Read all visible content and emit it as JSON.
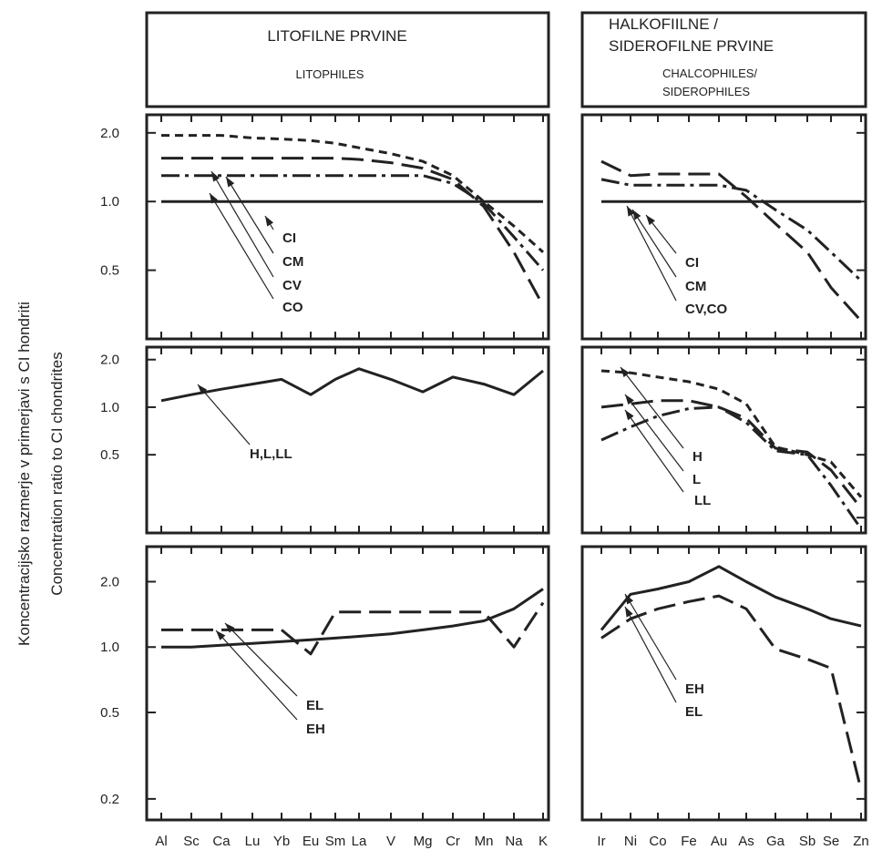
{
  "headers": {
    "left": {
      "title": "LITOFILNE PRVINE",
      "subtitle": "LITOPHILES"
    },
    "right": {
      "title_lines": [
        "HALKOFIILNE /",
        "SIDEROFILNE PRVINE"
      ],
      "subtitle_lines": [
        "CHALCOPHILES/",
        "SIDEROPHILES"
      ]
    }
  },
  "ylabel_lines": [
    "Koncentracijsko razmerje v primerjavi s CI hondriti",
    "Concentration ratio to CI chondrites"
  ],
  "chart_data": [
    {
      "id": "left-top",
      "type": "line",
      "yscale": "log",
      "ylim": [
        0.25,
        2.4
      ],
      "yticks": [
        "2.0",
        "1.0",
        "0.5"
      ],
      "ytick_values": [
        2.0,
        1.0,
        0.5
      ],
      "categories": [
        "Al",
        "Sc",
        "Ca",
        "Lu",
        "Yb",
        "Eu",
        "Sm",
        "La",
        "V",
        "Mg",
        "Cr",
        "Mn",
        "Na",
        "K"
      ],
      "reference_line": 1.0,
      "series": [
        {
          "name": "CI",
          "style": "solid",
          "values": [
            1.0,
            1.0,
            1.0,
            1.0,
            1.0,
            1.0,
            1.0,
            1.0,
            1.0,
            1.0,
            1.0,
            1.0,
            1.0,
            1.0
          ]
        },
        {
          "name": "CM",
          "style": "short-dash",
          "values": [
            1.95,
            1.95,
            1.95,
            1.9,
            1.88,
            1.85,
            1.8,
            1.72,
            1.62,
            1.5,
            1.3,
            1.0,
            0.78,
            0.6
          ]
        },
        {
          "name": "CV",
          "style": "long-dash",
          "values": [
            1.55,
            1.55,
            1.55,
            1.55,
            1.55,
            1.55,
            1.55,
            1.53,
            1.48,
            1.4,
            1.25,
            0.95,
            0.6,
            0.35
          ]
        },
        {
          "name": "CO",
          "style": "dash-dot",
          "values": [
            1.3,
            1.3,
            1.3,
            1.3,
            1.3,
            1.3,
            1.3,
            1.3,
            1.3,
            1.3,
            1.2,
            0.98,
            0.7,
            0.5
          ]
        }
      ],
      "labels": [
        "CI",
        "CM",
        "CV",
        "CO"
      ]
    },
    {
      "id": "right-top",
      "type": "line",
      "yscale": "log",
      "ylim": [
        0.25,
        2.4
      ],
      "categories": [
        "Ir",
        "Ni",
        "Co",
        "Fe",
        "Au",
        "As",
        "Ga",
        "Sb",
        "Se",
        "Zn"
      ],
      "reference_line": 1.0,
      "series": [
        {
          "name": "CI",
          "style": "solid",
          "values": [
            1.0,
            1.0,
            1.0,
            1.0,
            1.0,
            1.0,
            1.0,
            1.0,
            1.0,
            1.0
          ]
        },
        {
          "name": "CM",
          "style": "dash-dot",
          "values": [
            1.25,
            1.18,
            1.18,
            1.18,
            1.18,
            1.12,
            0.92,
            0.75,
            0.6,
            0.45
          ]
        },
        {
          "name": "CV,CO",
          "style": "long-dash",
          "values": [
            1.5,
            1.3,
            1.32,
            1.32,
            1.32,
            1.05,
            0.8,
            0.6,
            0.42,
            0.3
          ]
        }
      ],
      "labels": [
        "CI",
        "CM",
        "CV,CO"
      ]
    },
    {
      "id": "left-middle",
      "type": "line",
      "yscale": "log",
      "ylim": [
        0.16,
        2.4
      ],
      "yticks": [
        "2.0",
        "1.0",
        "0.5"
      ],
      "ytick_values": [
        2.0,
        1.0,
        0.5
      ],
      "categories": [
        "Al",
        "Sc",
        "Ca",
        "Lu",
        "Yb",
        "Eu",
        "Sm",
        "La",
        "V",
        "Mg",
        "Cr",
        "Mn",
        "Na",
        "K"
      ],
      "series": [
        {
          "name": "H,L,LL",
          "style": "solid",
          "values": [
            1.1,
            1.2,
            1.3,
            1.4,
            1.5,
            1.2,
            1.5,
            1.75,
            1.5,
            1.25,
            1.55,
            1.4,
            1.2,
            1.7
          ]
        }
      ],
      "labels": [
        "H,L,LL"
      ]
    },
    {
      "id": "right-middle",
      "type": "line",
      "yscale": "log",
      "ylim": [
        0.16,
        2.4
      ],
      "categories": [
        "Ir",
        "Ni",
        "Co",
        "Fe",
        "Au",
        "As",
        "Ga",
        "Sb",
        "Se",
        "Zn"
      ],
      "series": [
        {
          "name": "H",
          "style": "short-dash",
          "values": [
            1.7,
            1.65,
            1.55,
            1.45,
            1.3,
            1.05,
            0.56,
            0.5,
            0.45,
            0.27
          ]
        },
        {
          "name": "L",
          "style": "long-dash",
          "values": [
            1.0,
            1.05,
            1.1,
            1.1,
            1.0,
            0.85,
            0.55,
            0.52,
            0.4,
            0.23
          ]
        },
        {
          "name": "LL",
          "style": "dash-dot",
          "values": [
            0.62,
            0.75,
            0.88,
            0.98,
            1.0,
            0.8,
            0.53,
            0.5,
            0.32,
            0.17
          ]
        }
      ],
      "labels": [
        "H",
        "L",
        "LL"
      ]
    },
    {
      "id": "left-bottom",
      "type": "line",
      "yscale": "log",
      "ylim": [
        0.16,
        2.9
      ],
      "yticks": [
        "2.0",
        "1.0",
        "0.5",
        "0.2"
      ],
      "ytick_values": [
        2.0,
        1.0,
        0.5,
        0.2
      ],
      "categories": [
        "Al",
        "Sc",
        "Ca",
        "Lu",
        "Yb",
        "Eu",
        "Sm",
        "La",
        "V",
        "Mg",
        "Cr",
        "Mn",
        "Na",
        "K"
      ],
      "series": [
        {
          "name": "EL",
          "style": "long-dash",
          "values": [
            1.2,
            1.2,
            1.2,
            1.2,
            1.2,
            0.93,
            1.45,
            1.45,
            1.45,
            1.45,
            1.45,
            1.45,
            1.0,
            1.6
          ]
        },
        {
          "name": "EH",
          "style": "solid",
          "values": [
            1.0,
            1.0,
            1.02,
            1.04,
            1.06,
            1.08,
            1.1,
            1.12,
            1.15,
            1.2,
            1.25,
            1.32,
            1.5,
            1.85
          ]
        }
      ],
      "labels": [
        "EL",
        "EH"
      ]
    },
    {
      "id": "right-bottom",
      "type": "line",
      "yscale": "log",
      "ylim": [
        0.16,
        2.9
      ],
      "categories": [
        "Ir",
        "Ni",
        "Co",
        "Fe",
        "Au",
        "As",
        "Ga",
        "Sb",
        "Se",
        "Zn"
      ],
      "series": [
        {
          "name": "EH",
          "style": "solid",
          "values": [
            1.2,
            1.75,
            1.85,
            2.0,
            2.35,
            2.0,
            1.7,
            1.5,
            1.35,
            1.25
          ]
        },
        {
          "name": "EL",
          "style": "long-dash",
          "values": [
            1.1,
            1.35,
            1.5,
            1.62,
            1.72,
            1.5,
            0.98,
            0.88,
            0.8,
            0.22
          ]
        }
      ],
      "labels": [
        "EH",
        "EL"
      ]
    }
  ]
}
